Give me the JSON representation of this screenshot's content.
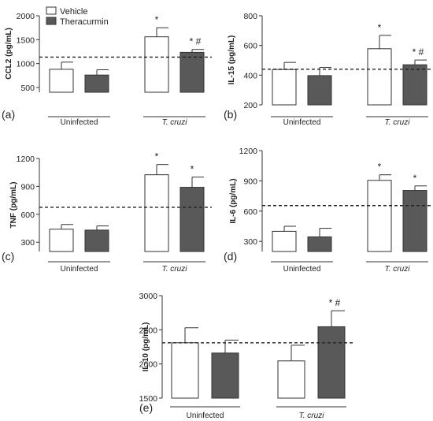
{
  "chart_data": [
    {
      "type": "bar",
      "panel_label": "(a)",
      "ylabel": "CCL2 (pg/mL)",
      "ylim": [
        400,
        2000
      ],
      "yticks": [
        500,
        1000,
        1500,
        2000
      ],
      "groups": [
        "Uninfected",
        "T. cruzi"
      ],
      "series": [
        {
          "name": "Vehicle",
          "values": [
            880,
            1560
          ],
          "errors": [
            150,
            190
          ]
        },
        {
          "name": "Theracurmin",
          "values": [
            760,
            1235
          ],
          "errors": [
            110,
            60
          ]
        }
      ],
      "markers": [
        [
          "",
          ""
        ],
        [
          "*",
          "* #"
        ]
      ],
      "reference_line": 1135,
      "legend": [
        "Vehicle",
        "Theracurmin"
      ]
    },
    {
      "type": "bar",
      "panel_label": "(b)",
      "ylabel": "IL-15 (pg/mL)",
      "ylim": [
        200,
        800
      ],
      "yticks": [
        200,
        400,
        600,
        800
      ],
      "groups": [
        "Uninfected",
        "T. cruzi"
      ],
      "series": [
        {
          "name": "Vehicle",
          "values": [
            438,
            578
          ],
          "errors": [
            48,
            90
          ]
        },
        {
          "name": "Theracurmin",
          "values": [
            397,
            470
          ],
          "errors": [
            55,
            32
          ]
        }
      ],
      "markers": [
        [
          "",
          ""
        ],
        [
          "*",
          "* #"
        ]
      ],
      "reference_line": 440
    },
    {
      "type": "bar",
      "panel_label": "(c)",
      "ylabel": "TNF (pg/mL)",
      "ylim": [
        200,
        1200
      ],
      "yticks": [
        300,
        600,
        900,
        1200
      ],
      "groups": [
        "Uninfected",
        "T. cruzi"
      ],
      "series": [
        {
          "name": "Vehicle",
          "values": [
            440,
            1025
          ],
          "errors": [
            50,
            110
          ]
        },
        {
          "name": "Theracurmin",
          "values": [
            430,
            890
          ],
          "errors": [
            45,
            110
          ]
        }
      ],
      "markers": [
        [
          "",
          ""
        ],
        [
          "*",
          "*"
        ]
      ],
      "reference_line": 675
    },
    {
      "type": "bar",
      "panel_label": "(d)",
      "ylabel": "IL-6 (pg/mL)",
      "ylim": [
        200,
        1200
      ],
      "yticks": [
        300,
        600,
        900,
        1200
      ],
      "groups": [
        "Uninfected",
        "T. cruzi"
      ],
      "series": [
        {
          "name": "Vehicle",
          "values": [
            400,
            905
          ],
          "errors": [
            50,
            55
          ]
        },
        {
          "name": "Theracurmin",
          "values": [
            345,
            805
          ],
          "errors": [
            85,
            45
          ]
        }
      ],
      "markers": [
        [
          "",
          ""
        ],
        [
          "*",
          "*"
        ]
      ],
      "reference_line": 655
    },
    {
      "type": "bar",
      "panel_label": "(e)",
      "ylabel": "IL-10 (pg/mL)",
      "ylim": [
        1500,
        3000
      ],
      "yticks": [
        1500,
        2000,
        2500,
        3000
      ],
      "groups": [
        "Uninfected",
        "T. cruzi"
      ],
      "series": [
        {
          "name": "Vehicle",
          "values": [
            2310,
            2045
          ],
          "errors": [
            220,
            230
          ]
        },
        {
          "name": "Theracurmin",
          "values": [
            2160,
            2545
          ],
          "errors": [
            190,
            235
          ]
        }
      ],
      "markers": [
        [
          "",
          ""
        ],
        [
          "",
          "* #"
        ]
      ],
      "reference_line": 2310
    }
  ]
}
